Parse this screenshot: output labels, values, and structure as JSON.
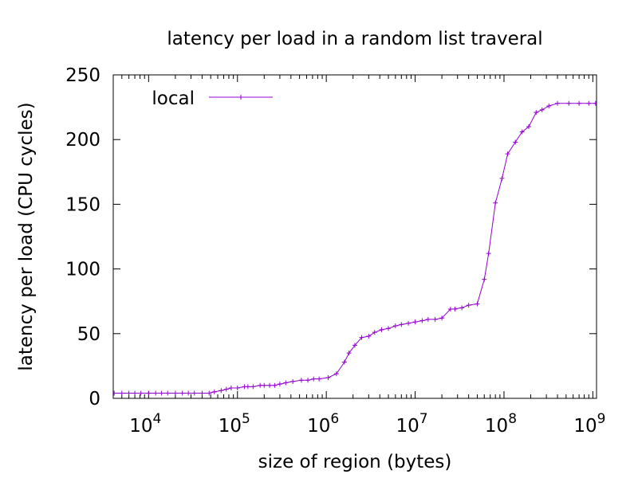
{
  "chart_data": {
    "type": "line",
    "title": "latency per load in a random list traveral",
    "xlabel": "size of region (bytes)",
    "ylabel": "latency per load (CPU cycles)",
    "x_scale": "log10",
    "xlim": [
      4000,
      1100000000
    ],
    "ylim": [
      0,
      250
    ],
    "x_ticks": [
      {
        "value": 10000,
        "base": "10",
        "exp": "4"
      },
      {
        "value": 100000,
        "base": "10",
        "exp": "5"
      },
      {
        "value": 1000000,
        "base": "10",
        "exp": "6"
      },
      {
        "value": 10000000,
        "base": "10",
        "exp": "7"
      },
      {
        "value": 100000000,
        "base": "10",
        "exp": "8"
      },
      {
        "value": 1000000000,
        "base": "10",
        "exp": "9"
      }
    ],
    "y_ticks": [
      0,
      50,
      100,
      150,
      200,
      250
    ],
    "grid": false,
    "legend_position": "top-left",
    "series": [
      {
        "name": "local",
        "color": "#9400d3",
        "marker": "plus",
        "points": [
          [
            4096,
            4
          ],
          [
            5000,
            4
          ],
          [
            6000,
            4
          ],
          [
            7000,
            4
          ],
          [
            8192,
            4
          ],
          [
            10000,
            4
          ],
          [
            12000,
            4
          ],
          [
            14000,
            4
          ],
          [
            16384,
            4
          ],
          [
            20000,
            4
          ],
          [
            24000,
            4
          ],
          [
            28000,
            4
          ],
          [
            32768,
            4
          ],
          [
            40000,
            4
          ],
          [
            48000,
            4
          ],
          [
            55000,
            5
          ],
          [
            65536,
            6
          ],
          [
            75000,
            7
          ],
          [
            85000,
            8
          ],
          [
            100000,
            8
          ],
          [
            120000,
            9
          ],
          [
            131072,
            9
          ],
          [
            150000,
            9
          ],
          [
            180000,
            10
          ],
          [
            200000,
            10
          ],
          [
            230000,
            10
          ],
          [
            262144,
            10
          ],
          [
            300000,
            11
          ],
          [
            350000,
            12
          ],
          [
            420000,
            13
          ],
          [
            524288,
            14
          ],
          [
            620000,
            14
          ],
          [
            720000,
            15
          ],
          [
            830000,
            15
          ],
          [
            1048576,
            16
          ],
          [
            1300000,
            19
          ],
          [
            1600000,
            28
          ],
          [
            1800000,
            35
          ],
          [
            2097152,
            41
          ],
          [
            2500000,
            47
          ],
          [
            3000000,
            48
          ],
          [
            3500000,
            51
          ],
          [
            4194304,
            53
          ],
          [
            5000000,
            54
          ],
          [
            6000000,
            56
          ],
          [
            7000000,
            57
          ],
          [
            8388608,
            58
          ],
          [
            10000000,
            59
          ],
          [
            12000000,
            60
          ],
          [
            14000000,
            61
          ],
          [
            16777216,
            61
          ],
          [
            20000000,
            62
          ],
          [
            25000000,
            69
          ],
          [
            28000000,
            69
          ],
          [
            33554432,
            70
          ],
          [
            40000000,
            72
          ],
          [
            50000000,
            73
          ],
          [
            60000000,
            92
          ],
          [
            67108864,
            112
          ],
          [
            80000000,
            151
          ],
          [
            95000000,
            170
          ],
          [
            110000000,
            189
          ],
          [
            134217728,
            198
          ],
          [
            160000000,
            206
          ],
          [
            190000000,
            210
          ],
          [
            230000000,
            221
          ],
          [
            268435456,
            223
          ],
          [
            320000000,
            226
          ],
          [
            400000000,
            228
          ],
          [
            536870912,
            228
          ],
          [
            700000000,
            228
          ],
          [
            900000000,
            228
          ],
          [
            1073741824,
            228
          ]
        ]
      }
    ]
  }
}
